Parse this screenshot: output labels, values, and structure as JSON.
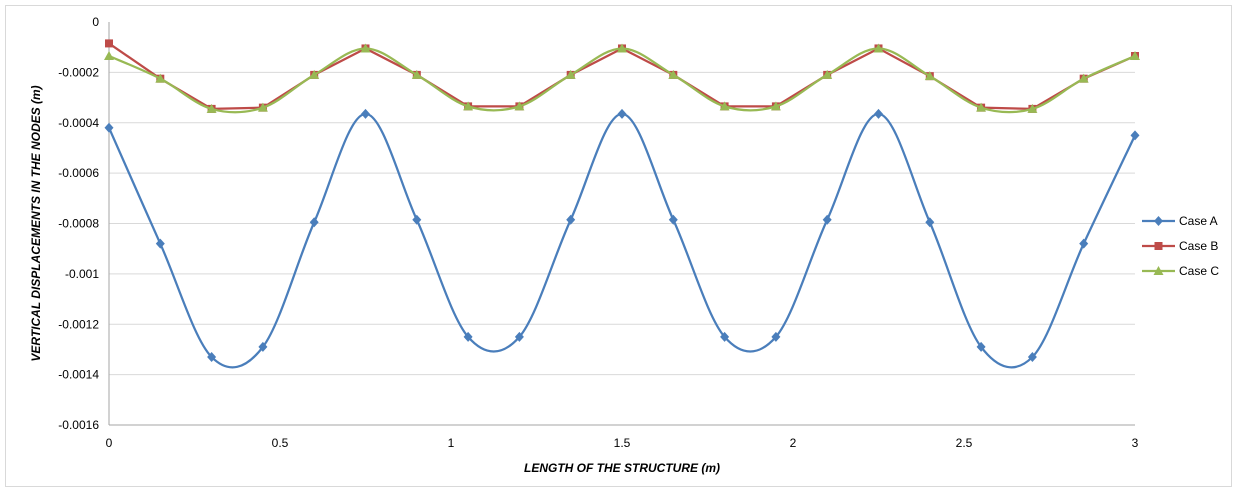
{
  "chart_data": {
    "type": "line",
    "title": "",
    "xlabel": "LENGTH OF THE STRUCTURE (m)",
    "ylabel": "VERTICAL DISPLACEMENTS IN THE NODES (m)",
    "xlim": [
      0,
      3
    ],
    "ylim": [
      -0.0016,
      0
    ],
    "x_ticks": [
      0,
      0.5,
      1,
      1.5,
      2,
      2.5,
      3
    ],
    "x_tick_labels": [
      "0",
      "0.5",
      "1",
      "1.5",
      "2",
      "2.5",
      "3"
    ],
    "y_ticks": [
      0,
      -0.0002,
      -0.0004,
      -0.0006,
      -0.0008,
      -0.001,
      -0.0012,
      -0.0014,
      -0.0016
    ],
    "y_tick_labels": [
      "0",
      "-0.0002",
      "-0.0004",
      "-0.0006",
      "-0.0008",
      "-0.001",
      "-0.0012",
      "-0.0014",
      "-0.0016"
    ],
    "grid": "horizontal",
    "legend_position": "right",
    "x": [
      0,
      0.15,
      0.3,
      0.45,
      0.6,
      0.75,
      0.9,
      1.05,
      1.2,
      1.35,
      1.5,
      1.65,
      1.8,
      1.95,
      2.1,
      2.25,
      2.4,
      2.55,
      2.7,
      2.85,
      3
    ],
    "series": [
      {
        "name": "Case A",
        "color": "#4a7ebb",
        "marker": "diamond",
        "smooth": true,
        "values": [
          -0.00042,
          -0.00088,
          -0.00133,
          -0.00129,
          -0.000795,
          -0.000365,
          -0.000785,
          -0.00125,
          -0.00125,
          -0.000785,
          -0.000365,
          -0.000785,
          -0.00125,
          -0.00125,
          -0.000785,
          -0.000365,
          -0.000795,
          -0.00129,
          -0.00133,
          -0.00088,
          -0.00045
        ]
      },
      {
        "name": "Case B",
        "color": "#be4b48",
        "marker": "square",
        "smooth": false,
        "values": [
          -8.5e-05,
          -0.000225,
          -0.000345,
          -0.00034,
          -0.00021,
          -0.000105,
          -0.00021,
          -0.000335,
          -0.000335,
          -0.00021,
          -0.000105,
          -0.00021,
          -0.000335,
          -0.000335,
          -0.00021,
          -0.000105,
          -0.000215,
          -0.00034,
          -0.000345,
          -0.000225,
          -0.000135
        ]
      },
      {
        "name": "Case C",
        "color": "#98b954",
        "marker": "triangle",
        "smooth": true,
        "values": [
          -0.000135,
          -0.000225,
          -0.000345,
          -0.00034,
          -0.00021,
          -0.000105,
          -0.00021,
          -0.000335,
          -0.000335,
          -0.00021,
          -0.000105,
          -0.00021,
          -0.000335,
          -0.000335,
          -0.00021,
          -0.000105,
          -0.000215,
          -0.00034,
          -0.000345,
          -0.000225,
          -0.000135
        ]
      }
    ]
  }
}
